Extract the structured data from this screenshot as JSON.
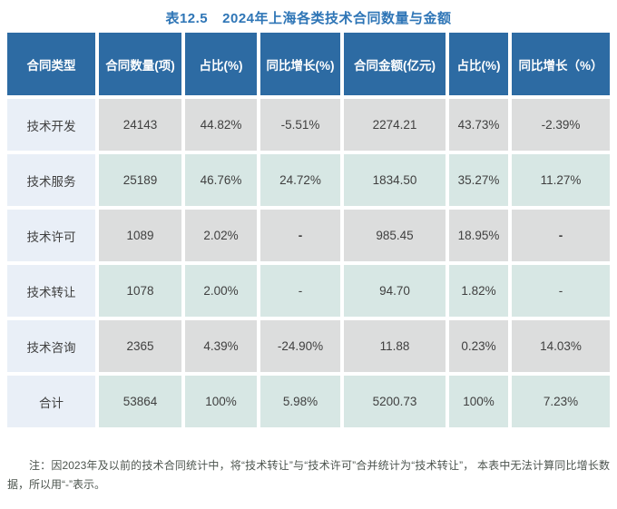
{
  "title": {
    "label": "表12.5",
    "caption": "2024年上海各类技术合同数量与金额"
  },
  "table": {
    "headers": [
      "合同类型",
      "合同数量(项)",
      "占比(%)",
      "同比增长(%)",
      "合同金额(亿元)",
      "占比(%)",
      "同比增长（%）"
    ],
    "rows": [
      {
        "cells": [
          "技术开发",
          "24143",
          "44.82%",
          "-5.51%",
          "2274.21",
          "43.73%",
          "-2.39%"
        ]
      },
      {
        "cells": [
          "技术服务",
          "25189",
          "46.76%",
          "24.72%",
          "1834.50",
          "35.27%",
          "11.27%"
        ]
      },
      {
        "cells": [
          "技术许可",
          "1089",
          "2.02%",
          "-",
          "985.45",
          "18.95%",
          "-"
        ]
      },
      {
        "cells": [
          "技术转让",
          "1078",
          "2.00%",
          "-",
          "94.70",
          "1.82%",
          "-"
        ]
      },
      {
        "cells": [
          "技术咨询",
          "2365",
          "4.39%",
          "-24.90%",
          "11.88",
          "0.23%",
          "14.03%"
        ]
      },
      {
        "cells": [
          "合计",
          "53864",
          "100%",
          "5.98%",
          "5200.73",
          "100%",
          "7.23%"
        ]
      }
    ]
  },
  "note": {
    "text": "注：因2023年及以前的技术合同统计中，将“技术转让”与“技术许可”合并统计为“技术转让”， 本表中无法计算同比增长数据，所以用“-”表示。"
  },
  "colors": {
    "title_text": "#2e75b6",
    "header_bg": "#2d6ba3",
    "header_text": "#ffffff",
    "category_col_bg": "#e9eff7",
    "row_gray_bg": "#dcdddd",
    "row_teal_bg": "#d7e7e4",
    "cell_text": "#404040",
    "note_text": "#4c544e"
  },
  "chart_data": {
    "type": "table",
    "title": "表12.5 2024年上海各类技术合同数量与金额",
    "columns": [
      "合同类型",
      "合同数量(项)",
      "占比(%)",
      "同比增长(%)",
      "合同金额(亿元)",
      "占比(%)",
      "同比增长（%）"
    ],
    "rows": [
      [
        "技术开发",
        24143,
        44.82,
        -5.51,
        2274.21,
        43.73,
        -2.39
      ],
      [
        "技术服务",
        25189,
        46.76,
        24.72,
        1834.5,
        35.27,
        11.27
      ],
      [
        "技术许可",
        1089,
        2.02,
        "-",
        985.45,
        18.95,
        "-"
      ],
      [
        "技术转让",
        1078,
        2.0,
        "-",
        94.7,
        1.82,
        "-"
      ],
      [
        "技术咨询",
        2365,
        4.39,
        -24.9,
        11.88,
        0.23,
        14.03
      ],
      [
        "合计",
        53864,
        100,
        5.98,
        5200.73,
        100,
        7.23
      ]
    ],
    "footnote": "注：因2023年及以前的技术合同统计中，将“技术转让”与“技术许可”合并统计为“技术转让”，本表中无法计算同比增长数据，所以用“-”表示。"
  }
}
